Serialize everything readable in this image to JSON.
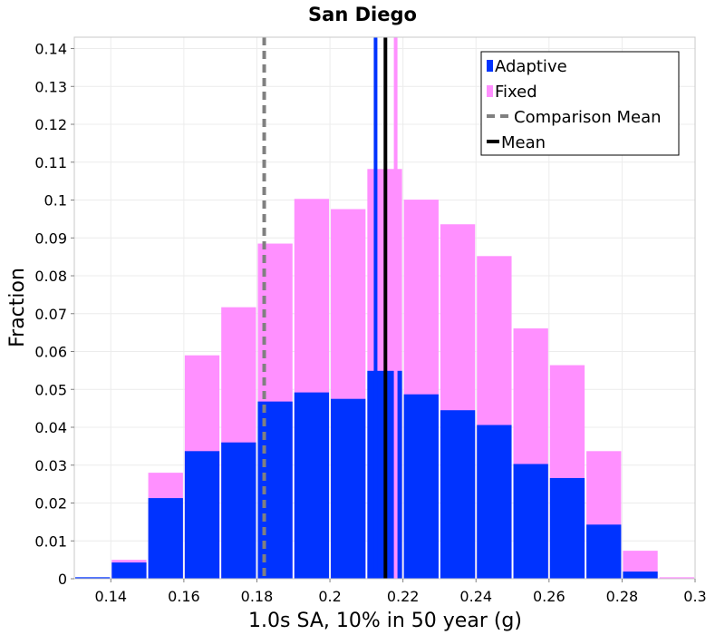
{
  "chart_data": {
    "type": "bar",
    "title": "San Diego",
    "xlabel": "1.0s SA, 10% in 50 year (g)",
    "ylabel": "Fraction",
    "xlim": [
      0.13,
      0.3
    ],
    "ylim": [
      0,
      0.143
    ],
    "xticks": [
      "0.14",
      "0.16",
      "0.18",
      "0.2",
      "0.22",
      "0.24",
      "0.26",
      "0.28",
      "0.3"
    ],
    "yticks": [
      "0",
      "0.01",
      "0.02",
      "0.03",
      "0.04",
      "0.05",
      "0.06",
      "0.07",
      "0.08",
      "0.09",
      "0.1",
      "0.11",
      "0.12",
      "0.13",
      "0.14"
    ],
    "grid": true,
    "bin_width": 0.01,
    "bin_centers": [
      0.135,
      0.145,
      0.155,
      0.165,
      0.175,
      0.185,
      0.195,
      0.205,
      0.215,
      0.225,
      0.235,
      0.245,
      0.255,
      0.265,
      0.275,
      0.285,
      0.295
    ],
    "series": [
      {
        "name": "Fixed",
        "color": "#ff90ff",
        "values": [
          0.0,
          0.005,
          0.028,
          0.059,
          0.0717,
          0.0885,
          0.1003,
          0.0976,
          0.1082,
          0.1001,
          0.0936,
          0.0852,
          0.0661,
          0.0564,
          0.0337,
          0.0074,
          0.0004
        ]
      },
      {
        "name": "Adaptive",
        "color": "#0033ff",
        "values": [
          0.0004,
          0.0043,
          0.0213,
          0.0337,
          0.036,
          0.0468,
          0.0492,
          0.0475,
          0.0549,
          0.0487,
          0.0445,
          0.0406,
          0.0303,
          0.0266,
          0.0143,
          0.0019,
          0.0
        ]
      }
    ],
    "vertical_lines": [
      {
        "name": "Comparison Mean",
        "x": 0.182,
        "color": "#808080",
        "dashed": true
      },
      {
        "name": "Adaptive mean",
        "x": 0.2125,
        "color": "#0033ff",
        "dashed": false
      },
      {
        "name": "Fixed mean",
        "x": 0.218,
        "color": "#ff90ff",
        "dashed": false
      },
      {
        "name": "Mean",
        "x": 0.2152,
        "color": "#000000",
        "dashed": false
      }
    ],
    "legend": {
      "placement": "top-right",
      "entries": [
        {
          "label": "Adaptive",
          "symbol": "square",
          "color": "#0033ff"
        },
        {
          "label": "Fixed",
          "symbol": "square",
          "color": "#ff90ff"
        },
        {
          "label": "Comparison Mean",
          "symbol": "dashed-line",
          "color": "#808080"
        },
        {
          "label": "Mean",
          "symbol": "line",
          "color": "#000000"
        }
      ]
    }
  }
}
